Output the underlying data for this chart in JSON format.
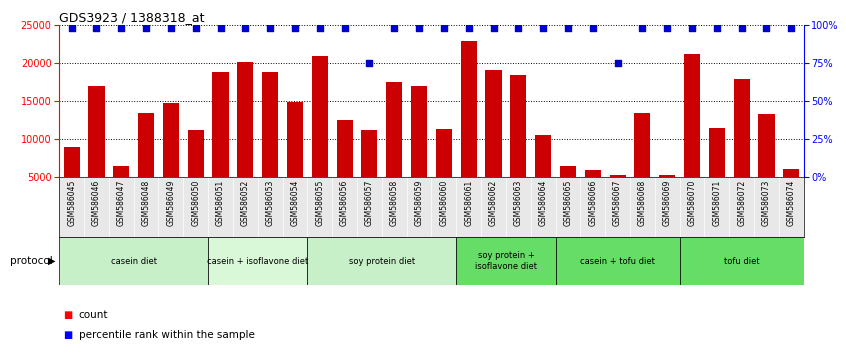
{
  "title": "GDS3923 / 1388318_at",
  "categories": [
    "GSM586045",
    "GSM586046",
    "GSM586047",
    "GSM586048",
    "GSM586049",
    "GSM586050",
    "GSM586051",
    "GSM586052",
    "GSM586053",
    "GSM586054",
    "GSM586055",
    "GSM586056",
    "GSM586057",
    "GSM586058",
    "GSM586059",
    "GSM586060",
    "GSM586061",
    "GSM586062",
    "GSM586063",
    "GSM586064",
    "GSM586065",
    "GSM586066",
    "GSM586067",
    "GSM586068",
    "GSM586069",
    "GSM586070",
    "GSM586071",
    "GSM586072",
    "GSM586073",
    "GSM586074"
  ],
  "bar_values": [
    8900,
    17000,
    6400,
    13400,
    14700,
    11200,
    18800,
    20100,
    18800,
    14900,
    20900,
    12500,
    11200,
    17500,
    16900,
    11300,
    22900,
    19000,
    18400,
    10500,
    6400,
    5900,
    5300,
    13400,
    5200,
    21100,
    11500,
    17900,
    13300,
    6000
  ],
  "percentile_values": [
    98,
    98,
    98,
    98,
    98,
    98,
    98,
    98,
    98,
    98,
    98,
    98,
    75,
    98,
    98,
    98,
    98,
    98,
    98,
    98,
    98,
    98,
    75,
    98,
    98,
    98,
    98,
    98,
    98,
    98
  ],
  "bar_color": "#cc0000",
  "percentile_color": "#0000cc",
  "ylim_left": [
    5000,
    25000
  ],
  "ylim_right": [
    0,
    100
  ],
  "yticks_left": [
    5000,
    10000,
    15000,
    20000,
    25000
  ],
  "yticks_right": [
    0,
    25,
    50,
    75,
    100
  ],
  "dotted_lines": [
    10000,
    15000,
    20000,
    25000
  ],
  "protocol_groups": [
    {
      "label": "casein diet",
      "start": 0,
      "end": 6,
      "color": "#c8f0c8"
    },
    {
      "label": "casein + isoflavone diet",
      "start": 6,
      "end": 10,
      "color": "#d8f8d8"
    },
    {
      "label": "soy protein diet",
      "start": 10,
      "end": 16,
      "color": "#c8f0c8"
    },
    {
      "label": "soy protein +\nisoflavone diet",
      "start": 16,
      "end": 20,
      "color": "#66dd66"
    },
    {
      "label": "casein + tofu diet",
      "start": 20,
      "end": 25,
      "color": "#66dd66"
    },
    {
      "label": "tofu diet",
      "start": 25,
      "end": 30,
      "color": "#66dd66"
    }
  ],
  "protocol_label": "protocol",
  "legend_count_label": "count",
  "legend_percentile_label": "percentile rank within the sample",
  "bg_color": "#e8e8e8"
}
